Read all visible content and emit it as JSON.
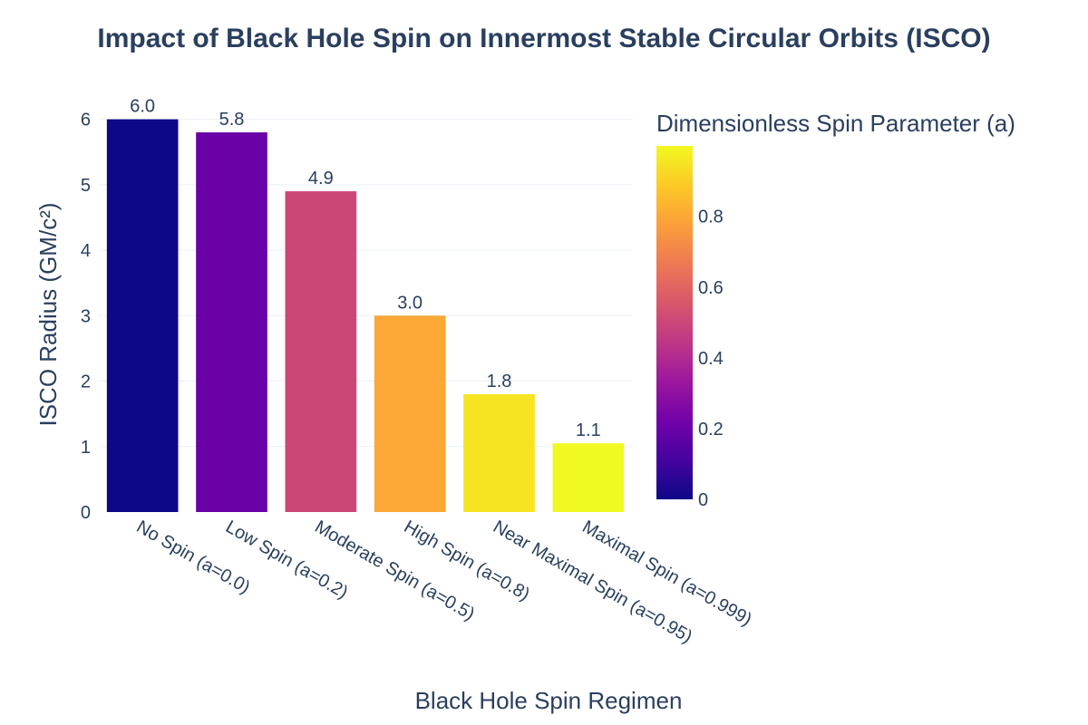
{
  "chart_data": {
    "type": "bar",
    "title": "Impact of Black Hole Spin on Innermost Stable Circular Orbits (ISCO)",
    "xlabel": "Black Hole Spin Regimen",
    "ylabel": "ISCO Radius (GM/c²)",
    "categories": [
      "No Spin (a=0.0)",
      "Low Spin (a=0.2)",
      "Moderate Spin (a=0.5)",
      "High Spin (a=0.8)",
      "Near Maximal Spin (a=0.95)",
      "Maximal Spin (a=0.999)"
    ],
    "values": [
      6.0,
      5.8,
      4.9,
      3.0,
      1.8,
      1.05
    ],
    "data_labels": [
      "6.0",
      "5.8",
      "4.9",
      "3.0",
      "1.8",
      "1.1"
    ],
    "color_values": [
      0.0,
      0.2,
      0.5,
      0.8,
      0.95,
      0.999
    ],
    "ylim": [
      0,
      6.05
    ],
    "yticks": [
      0,
      1,
      2,
      3,
      4,
      5,
      6
    ],
    "grid": true,
    "colorbar": {
      "title": "Dimensionless Spin Parameter (a)",
      "range": [
        0,
        0.999
      ],
      "ticks": [
        0,
        0.2,
        0.4,
        0.6,
        0.8
      ],
      "tick_labels": [
        "0",
        "0.2",
        "0.4",
        "0.6",
        "0.8"
      ],
      "colorscale": "plasma"
    },
    "colors": {
      "text": "#2a3f5f",
      "grid": "#ebf0f8"
    }
  }
}
